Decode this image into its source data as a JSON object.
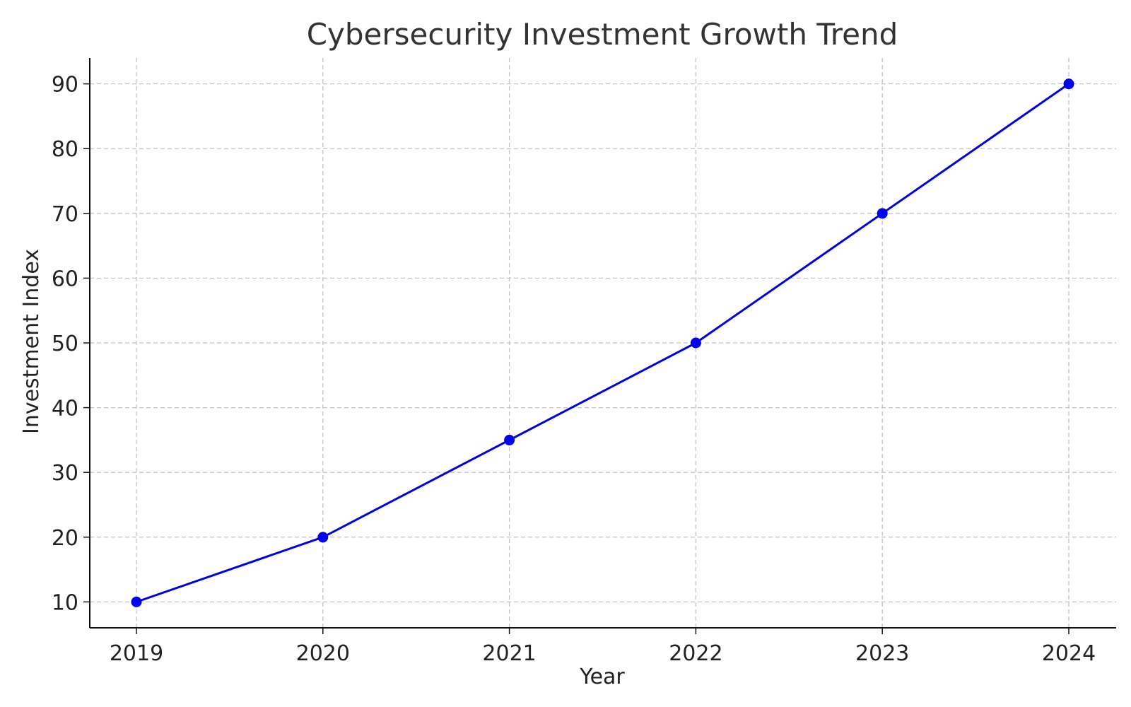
{
  "chart_data": {
    "type": "line",
    "title": "Cybersecurity Investment Growth Trend",
    "xlabel": "Year",
    "ylabel": "Investment Index",
    "categories": [
      "2019",
      "2020",
      "2021",
      "2022",
      "2023",
      "2024"
    ],
    "series": [
      {
        "values": [
          10,
          20,
          35,
          50,
          70,
          90
        ],
        "color": "#0000ee",
        "marker": "circle"
      }
    ],
    "yticks": [
      10,
      20,
      30,
      40,
      50,
      60,
      70,
      80,
      90
    ],
    "ylim": [
      6,
      94
    ],
    "grid": true,
    "legend": "none"
  }
}
